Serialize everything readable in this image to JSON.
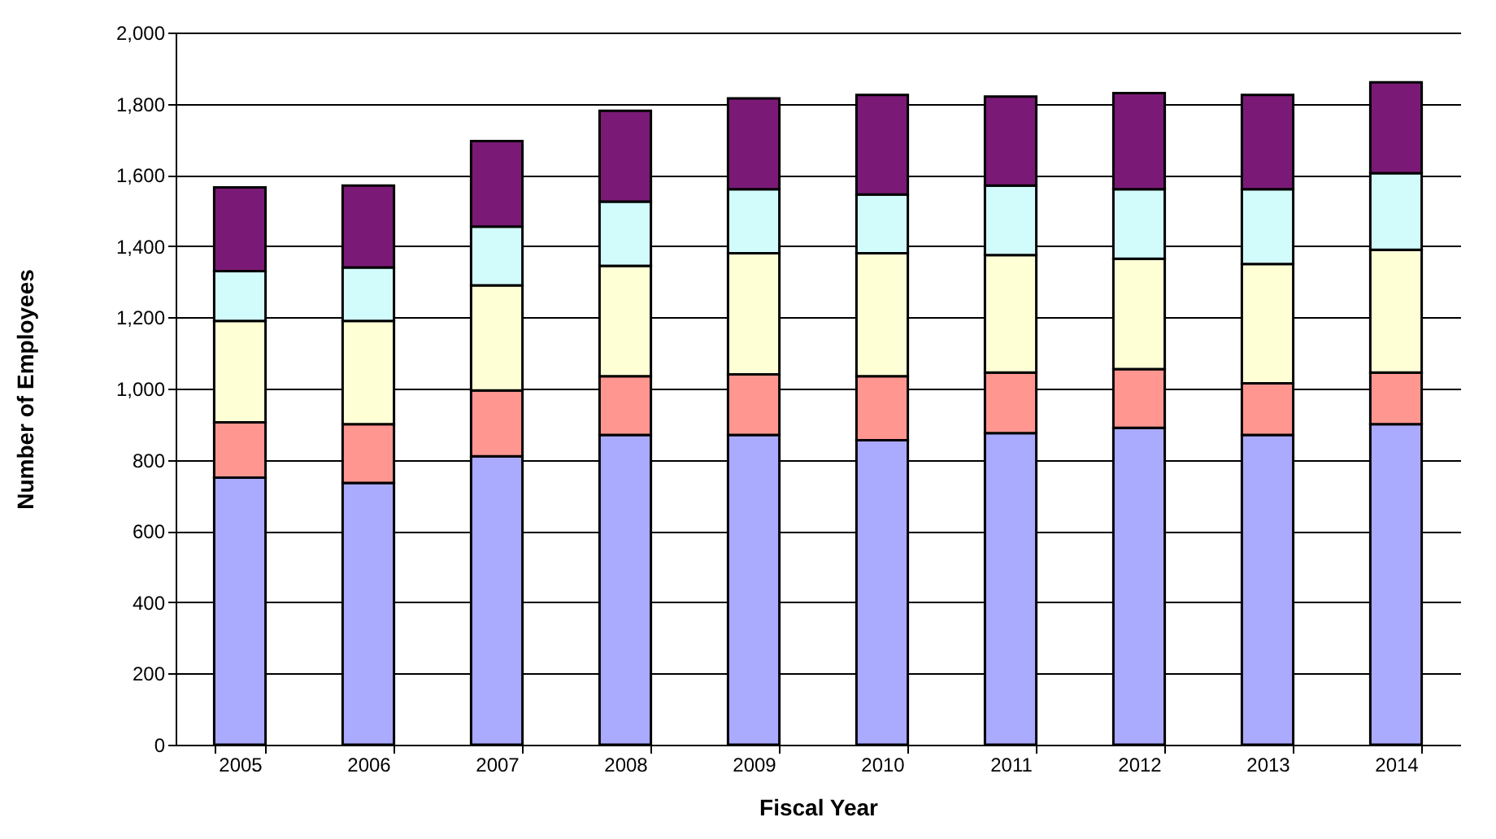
{
  "chart_data": {
    "type": "bar",
    "stacked": true,
    "xlabel": "Fiscal Year",
    "ylabel": "Number of Employees",
    "categories": [
      "2005",
      "2006",
      "2007",
      "2008",
      "2009",
      "2010",
      "2011",
      "2012",
      "2013",
      "2014"
    ],
    "series": [
      {
        "color": "#aaaaff",
        "values": [
          750,
          735,
          810,
          870,
          870,
          855,
          875,
          890,
          870,
          900
        ]
      },
      {
        "color": "#ff9690",
        "values": [
          155,
          165,
          185,
          165,
          170,
          180,
          170,
          165,
          145,
          145
        ]
      },
      {
        "color": "#ffffd6",
        "values": [
          285,
          290,
          295,
          310,
          340,
          345,
          330,
          310,
          335,
          345
        ]
      },
      {
        "color": "#d2fcfc",
        "values": [
          140,
          150,
          165,
          180,
          180,
          165,
          195,
          195,
          210,
          215
        ]
      },
      {
        "color": "#7a1a76",
        "values": [
          235,
          230,
          240,
          255,
          255,
          280,
          250,
          270,
          265,
          255
        ]
      }
    ],
    "ylim": [
      0,
      2000
    ],
    "yticks": [
      0,
      200,
      400,
      600,
      800,
      {
        "value": 1000,
        "label": "1,000"
      },
      {
        "value": 1200,
        "label": "1,200"
      },
      {
        "value": 1400,
        "label": "1,400"
      },
      {
        "value": 1600,
        "label": "1,600"
      },
      {
        "value": 1800,
        "label": "1,800"
      },
      {
        "value": 2000,
        "label": "2,000"
      }
    ],
    "grid": "y",
    "legend": false
  }
}
